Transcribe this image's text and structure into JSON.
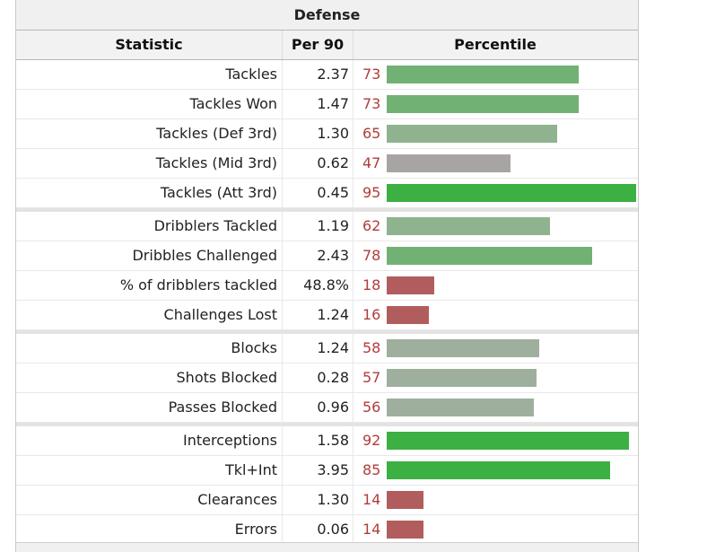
{
  "table": {
    "caption": "Defense",
    "headers": {
      "statistic": "Statistic",
      "per90": "Per 90",
      "percentile": "Percentile"
    },
    "colors": {
      "high": "#3cb043",
      "above": "#72b174",
      "mid": "#8fb38f",
      "neutral": "#9eaf9e",
      "avg": "#a9a4a4",
      "low": "#b25d5d"
    },
    "rows": [
      {
        "stat": "Tackles",
        "per90": "2.37",
        "pct": "73",
        "color": "#72b174"
      },
      {
        "stat": "Tackles Won",
        "per90": "1.47",
        "pct": "73",
        "color": "#72b174"
      },
      {
        "stat": "Tackles (Def 3rd)",
        "per90": "1.30",
        "pct": "65",
        "color": "#8fb38f"
      },
      {
        "stat": "Tackles (Mid 3rd)",
        "per90": "0.62",
        "pct": "47",
        "color": "#a9a4a4"
      },
      {
        "stat": "Tackles (Att 3rd)",
        "per90": "0.45",
        "pct": "95",
        "color": "#3cb043"
      },
      {
        "stat": "Dribblers Tackled",
        "per90": "1.19",
        "pct": "62",
        "color": "#8fb38f"
      },
      {
        "stat": "Dribbles Challenged",
        "per90": "2.43",
        "pct": "78",
        "color": "#72b174"
      },
      {
        "stat": "% of dribblers tackled",
        "per90": "48.8%",
        "pct": "18",
        "color": "#b25d5d"
      },
      {
        "stat": "Challenges Lost",
        "per90": "1.24",
        "pct": "16",
        "color": "#b25d5d"
      },
      {
        "stat": "Blocks",
        "per90": "1.24",
        "pct": "58",
        "color": "#9eaf9e"
      },
      {
        "stat": "Shots Blocked",
        "per90": "0.28",
        "pct": "57",
        "color": "#9eaf9e"
      },
      {
        "stat": "Passes Blocked",
        "per90": "0.96",
        "pct": "56",
        "color": "#9eaf9e"
      },
      {
        "stat": "Interceptions",
        "per90": "1.58",
        "pct": "92",
        "color": "#3cb043"
      },
      {
        "stat": "Tkl+Int",
        "per90": "3.95",
        "pct": "85",
        "color": "#3cb043"
      },
      {
        "stat": "Clearances",
        "per90": "1.30",
        "pct": "14",
        "color": "#b25d5d"
      },
      {
        "stat": "Errors",
        "per90": "0.06",
        "pct": "14",
        "color": "#b25d5d"
      }
    ]
  }
}
